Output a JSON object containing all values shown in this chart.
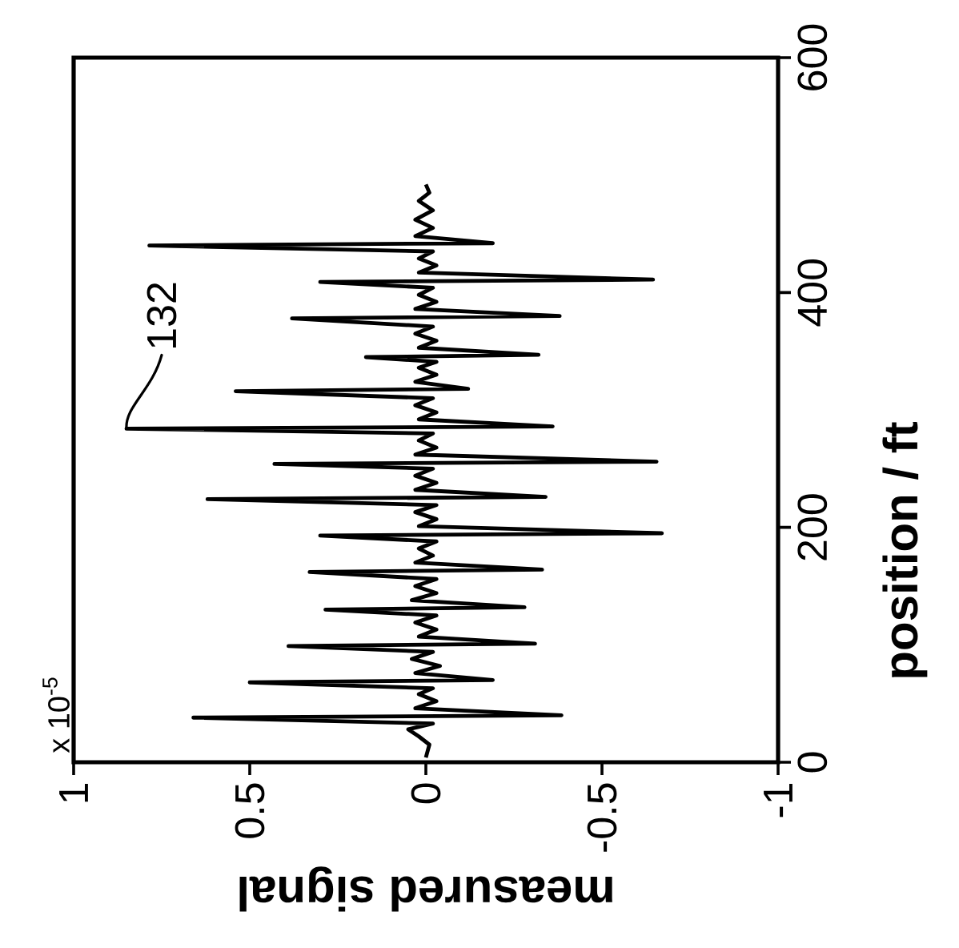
{
  "chart_data": {
    "type": "line",
    "xlabel": "measured signal",
    "ylabel": "position / ft",
    "annotations": [
      "x 10$^{-5}$",
      {
        "text": "132",
        "x": 0.85,
        "y": 284
      }
    ],
    "values": [
      4,
      15,
      22,
      28,
      33,
      38,
      40,
      46,
      52,
      58,
      63,
      68,
      70,
      76,
      82,
      88,
      94,
      99,
      101,
      107,
      113,
      119,
      125,
      130,
      132,
      138,
      144,
      150,
      156,
      162,
      164,
      170,
      176,
      182,
      188,
      193,
      195,
      201,
      207,
      213,
      219,
      224,
      226,
      232,
      238,
      244,
      250,
      254,
      256,
      262,
      268,
      274,
      280,
      284,
      286,
      292,
      298,
      304,
      310,
      316,
      318,
      324,
      330,
      336,
      341,
      345,
      347,
      353,
      359,
      365,
      371,
      378,
      380,
      386,
      392,
      398,
      404,
      409,
      411,
      417,
      423,
      429,
      435,
      440,
      442,
      448,
      455,
      462,
      470,
      478,
      485,
      492
    ],
    "x": [
      0,
      -0.01,
      0.02,
      0.05,
      -0.02,
      0.66,
      -0.385,
      0.03,
      -0.03,
      0.02,
      -0.02,
      0.5,
      -0.19,
      0.03,
      -0.04,
      0.04,
      -0.02,
      0.39,
      -0.31,
      0.02,
      -0.03,
      0.03,
      -0.03,
      0.285,
      -0.28,
      0.04,
      -0.03,
      0.03,
      -0.03,
      0.33,
      -0.33,
      0.03,
      -0.02,
      0.02,
      -0.03,
      0.3,
      -0.67,
      0.02,
      -0.03,
      0.03,
      -0.03,
      0.62,
      -0.34,
      0.03,
      -0.03,
      0.03,
      -0.02,
      0.43,
      -0.655,
      0.03,
      -0.03,
      0.02,
      -0.02,
      0.85,
      -0.36,
      0.02,
      -0.03,
      0.03,
      -0.02,
      0.54,
      -0.12,
      0.03,
      -0.03,
      0.02,
      -0.03,
      0.17,
      -0.32,
      0.02,
      -0.03,
      0.03,
      -0.02,
      0.38,
      -0.38,
      0.03,
      -0.03,
      0.02,
      -0.02,
      0.3,
      -0.645,
      0.02,
      -0.03,
      0.02,
      -0.02,
      0.785,
      -0.19,
      0.03,
      -0.02,
      0.03,
      -0.02,
      0.02,
      -0.01,
      0
    ],
    "color": "#000000",
    "marker": "none",
    "xlim": [
      1,
      -1
    ],
    "ylim": [
      0,
      600
    ],
    "xticks": [
      {
        "value": 1,
        "label": "1"
      },
      {
        "value": 0.5,
        "label": "0.5"
      },
      {
        "value": 0,
        "label": "0"
      },
      {
        "value": -0.5,
        "label": "-0.5"
      },
      {
        "value": -1,
        "label": "-1"
      }
    ],
    "yticks": [
      {
        "value": 0,
        "label": "0"
      },
      {
        "value": 200,
        "label": "200"
      },
      {
        "value": 400,
        "label": "400"
      },
      {
        "value": 600,
        "label": "600"
      }
    ]
  }
}
